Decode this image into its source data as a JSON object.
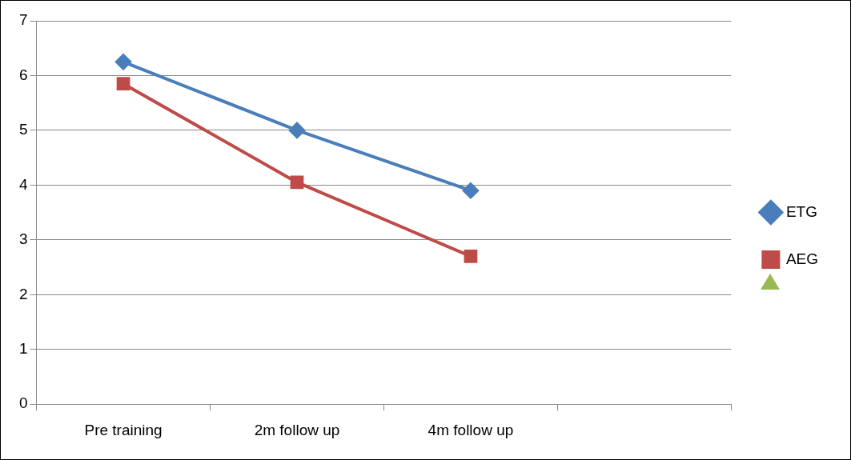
{
  "chart_data": {
    "type": "line",
    "categories": [
      "Pre training",
      "2m follow up",
      "4m follow up",
      null
    ],
    "series": [
      {
        "name": "ETG",
        "color": "#4a7ebb",
        "marker": "diamond",
        "values": [
          6.25,
          5.0,
          3.9,
          null
        ]
      },
      {
        "name": "AEG",
        "color": "#be4b48",
        "marker": "square",
        "values": [
          5.85,
          4.05,
          2.7,
          null
        ]
      }
    ],
    "ylim": [
      0,
      7
    ],
    "yticks": [
      0,
      1,
      2,
      3,
      4,
      5,
      6,
      7
    ],
    "grid": "y",
    "legend": "right"
  }
}
